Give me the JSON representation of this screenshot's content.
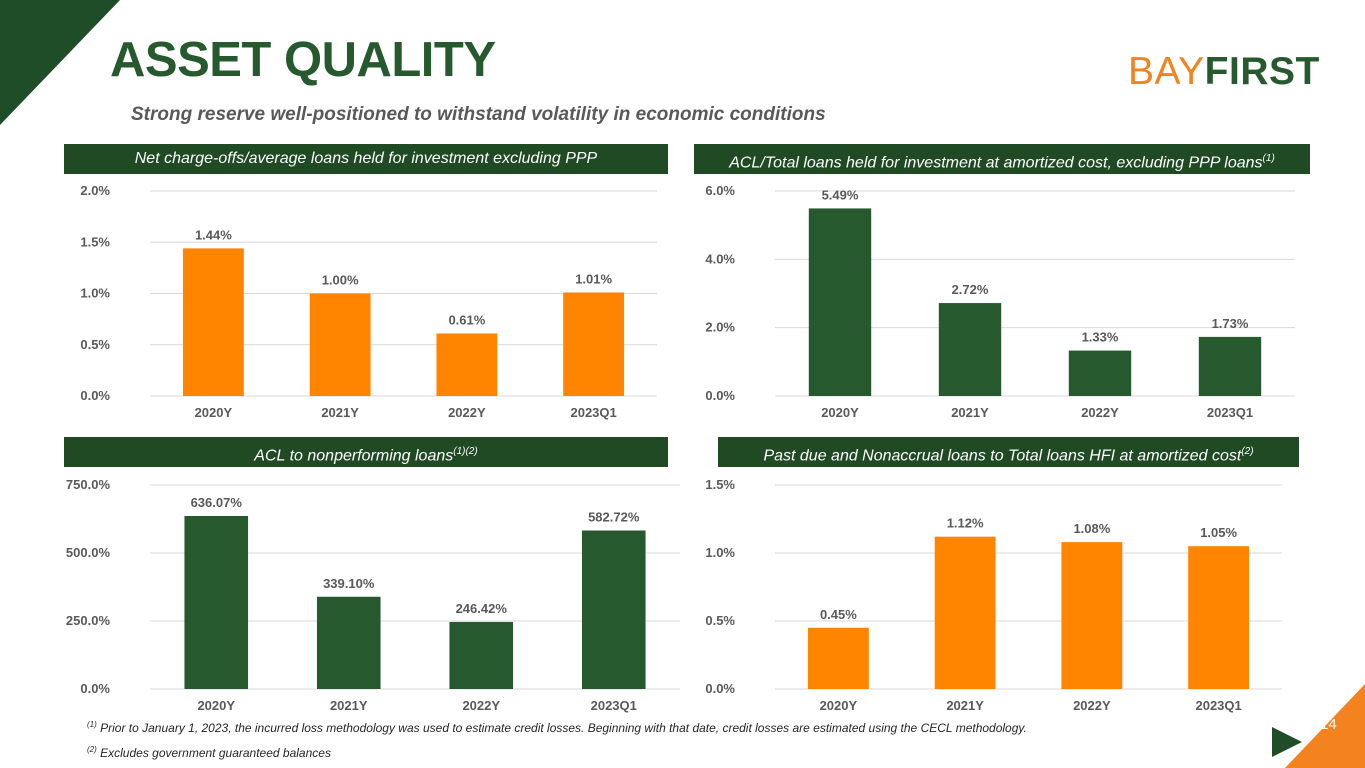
{
  "header": {
    "title": "ASSET QUALITY",
    "subtitle": "Strong reserve well-positioned to withstand volatility in economic conditions",
    "logo_part1": "BAY",
    "logo_part2": "FIRST"
  },
  "colors": {
    "orange": "#ff8400",
    "green": "#265a2e",
    "dark_green": "#1f4a24"
  },
  "panels": [
    {
      "title": "Net charge-offs/average loans held for investment excluding PPP",
      "sup": ""
    },
    {
      "title": "ACL/Total loans held for investment at amortized cost, excluding PPP loans",
      "sup": "(1)"
    },
    {
      "title": "ACL to nonperforming loans",
      "sup": "(1)(2)"
    },
    {
      "title": "Past due and Nonaccrual loans to Total loans HFI at amortized cost",
      "sup": "(2)"
    }
  ],
  "chart_data": [
    {
      "type": "bar",
      "title": "Net charge-offs/average loans held for investment excluding PPP",
      "categories": [
        "2020Y",
        "2021Y",
        "2022Y",
        "2023Q1"
      ],
      "values": [
        1.44,
        1.0,
        0.61,
        1.01
      ],
      "labels": [
        "1.44%",
        "1.00%",
        "0.61%",
        "1.01%"
      ],
      "ylim": [
        0,
        2.0
      ],
      "yticks": [
        0,
        0.5,
        1.0,
        1.5,
        2.0
      ],
      "ytick_labels": [
        "0.0%",
        "0.5%",
        "1.0%",
        "1.5%",
        "2.0%"
      ],
      "color": "#ff8400",
      "grid": true
    },
    {
      "type": "bar",
      "title": "ACL/Total loans held for investment at amortized cost, excluding PPP loans",
      "categories": [
        "2020Y",
        "2021Y",
        "2022Y",
        "2023Q1"
      ],
      "values": [
        5.49,
        2.72,
        1.33,
        1.73
      ],
      "labels": [
        "5.49%",
        "2.72%",
        "1.33%",
        "1.73%"
      ],
      "ylim": [
        0,
        6.0
      ],
      "yticks": [
        0,
        2.0,
        4.0,
        6.0
      ],
      "ytick_labels": [
        "0.0%",
        "2.0%",
        "4.0%",
        "6.0%"
      ],
      "color": "#265a2e",
      "grid": true
    },
    {
      "type": "bar",
      "title": "ACL to nonperforming loans",
      "categories": [
        "2020Y",
        "2021Y",
        "2022Y",
        "2023Q1"
      ],
      "values": [
        636.07,
        339.1,
        246.42,
        582.72
      ],
      "labels": [
        "636.07%",
        "339.10%",
        "246.42%",
        "582.72%"
      ],
      "ylim": [
        0,
        750.0
      ],
      "yticks": [
        0,
        250.0,
        500.0,
        750.0
      ],
      "ytick_labels": [
        "0.0%",
        "250.0%",
        "500.0%",
        "750.0%"
      ],
      "color": "#265a2e",
      "grid": true
    },
    {
      "type": "bar",
      "title": "Past due and Nonaccrual loans to Total loans HFI at amortized cost",
      "categories": [
        "2020Y",
        "2021Y",
        "2022Y",
        "2023Q1"
      ],
      "values": [
        0.45,
        1.12,
        1.08,
        1.05
      ],
      "labels": [
        "0.45%",
        "1.12%",
        "1.08%",
        "1.05%"
      ],
      "ylim": [
        0,
        1.5
      ],
      "yticks": [
        0,
        0.5,
        1.0,
        1.5
      ],
      "ytick_labels": [
        "0.0%",
        "0.5%",
        "1.0%",
        "1.5%"
      ],
      "color": "#ff8400",
      "grid": true
    }
  ],
  "footnotes": {
    "note1_marker": "(1)",
    "note1": "Prior to January 1, 2023, the incurred loss methodology was used to estimate credit losses. Beginning with that date, credit losses are estimated using the CECL methodology.",
    "note2_marker": "(2)",
    "note2": "Excludes government guaranteed balances"
  },
  "page_number": "14"
}
